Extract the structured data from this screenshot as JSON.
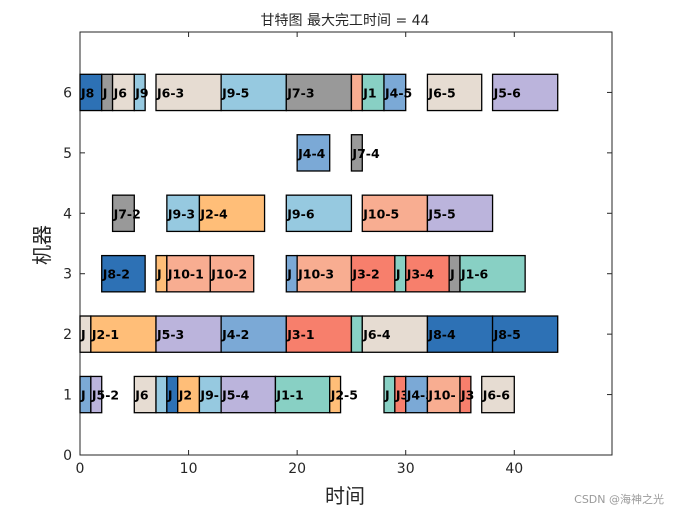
{
  "chart_data": {
    "type": "gantt",
    "title": "甘特图 最大完工时间 = 44",
    "xlabel": "时间",
    "ylabel": "机器",
    "xlim": [
      0,
      49
    ],
    "ylim": [
      0,
      7
    ],
    "xticks": [
      0,
      10,
      20,
      30,
      40
    ],
    "yticks": [
      0,
      1,
      2,
      3,
      4,
      5,
      6
    ],
    "grid": false,
    "job_colors": {
      "J1": "#88d0c4",
      "J2": "#ffbe78",
      "J3": "#f77f6c",
      "J4": "#7ba9d6",
      "J5": "#bbb4dc",
      "J6": "#e6dcd2",
      "J7": "#999999",
      "J8": "#2d71b5",
      "J9": "#96c9e0",
      "J10": "#f8ad91"
    },
    "tasks": [
      {
        "machine": 1,
        "start": 0,
        "end": 1,
        "job": "J4",
        "label": "J"
      },
      {
        "machine": 1,
        "start": 1,
        "end": 2,
        "job": "J5",
        "label": "J5-2"
      },
      {
        "machine": 1,
        "start": 5,
        "end": 7,
        "job": "J6",
        "label": "J6"
      },
      {
        "machine": 1,
        "start": 7,
        "end": 8,
        "job": "J9",
        "label": ""
      },
      {
        "machine": 1,
        "start": 8,
        "end": 9,
        "job": "J8",
        "label": "J"
      },
      {
        "machine": 1,
        "start": 9,
        "end": 11,
        "job": "J2",
        "label": "J2"
      },
      {
        "machine": 1,
        "start": 11,
        "end": 13,
        "job": "J9",
        "label": "J9-"
      },
      {
        "machine": 1,
        "start": 13,
        "end": 18,
        "job": "J5",
        "label": "J5-4"
      },
      {
        "machine": 1,
        "start": 18,
        "end": 23,
        "job": "J1",
        "label": "J1-1"
      },
      {
        "machine": 1,
        "start": 23,
        "end": 24,
        "job": "J2",
        "label": "J2-5"
      },
      {
        "machine": 1,
        "start": 28,
        "end": 29,
        "job": "J1",
        "label": "J"
      },
      {
        "machine": 1,
        "start": 29,
        "end": 30,
        "job": "J3",
        "label": "J3"
      },
      {
        "machine": 1,
        "start": 30,
        "end": 32,
        "job": "J4",
        "label": "J4-3"
      },
      {
        "machine": 1,
        "start": 32,
        "end": 35,
        "job": "J10",
        "label": "J10-"
      },
      {
        "machine": 1,
        "start": 35,
        "end": 36,
        "job": "J3",
        "label": "J3"
      },
      {
        "machine": 1,
        "start": 37,
        "end": 40,
        "job": "J6",
        "label": "J6-6"
      },
      {
        "machine": 2,
        "start": 0,
        "end": 1,
        "job": "J6",
        "label": "J"
      },
      {
        "machine": 2,
        "start": 1,
        "end": 7,
        "job": "J2",
        "label": "J2-1"
      },
      {
        "machine": 2,
        "start": 7,
        "end": 13,
        "job": "J5",
        "label": "J5-3"
      },
      {
        "machine": 2,
        "start": 13,
        "end": 19,
        "job": "J4",
        "label": "J4-2"
      },
      {
        "machine": 2,
        "start": 19,
        "end": 25,
        "job": "J3",
        "label": "J3-1"
      },
      {
        "machine": 2,
        "start": 25,
        "end": 26,
        "job": "J1",
        "label": ""
      },
      {
        "machine": 2,
        "start": 26,
        "end": 32,
        "job": "J6",
        "label": "J6-4"
      },
      {
        "machine": 2,
        "start": 32,
        "end": 38,
        "job": "J8",
        "label": "J8-4"
      },
      {
        "machine": 2,
        "start": 38,
        "end": 44,
        "job": "J8",
        "label": "J8-5"
      },
      {
        "machine": 3,
        "start": 2,
        "end": 6,
        "job": "J8",
        "label": "J8-2"
      },
      {
        "machine": 3,
        "start": 7,
        "end": 8,
        "job": "J2",
        "label": "J"
      },
      {
        "machine": 3,
        "start": 8,
        "end": 12,
        "job": "J10",
        "label": "J10-1"
      },
      {
        "machine": 3,
        "start": 12,
        "end": 16,
        "job": "J10",
        "label": "J10-2"
      },
      {
        "machine": 3,
        "start": 19,
        "end": 20,
        "job": "J4",
        "label": "J"
      },
      {
        "machine": 3,
        "start": 20,
        "end": 25,
        "job": "J10",
        "label": "J10-3"
      },
      {
        "machine": 3,
        "start": 25,
        "end": 29,
        "job": "J3",
        "label": "J3-2"
      },
      {
        "machine": 3,
        "start": 29,
        "end": 30,
        "job": "J1",
        "label": "J"
      },
      {
        "machine": 3,
        "start": 30,
        "end": 34,
        "job": "J3",
        "label": "J3-4"
      },
      {
        "machine": 3,
        "start": 34,
        "end": 35,
        "job": "J7",
        "label": "J"
      },
      {
        "machine": 3,
        "start": 35,
        "end": 41,
        "job": "J1",
        "label": "J1-6"
      },
      {
        "machine": 4,
        "start": 3,
        "end": 5,
        "job": "J7",
        "label": "J7-2"
      },
      {
        "machine": 4,
        "start": 8,
        "end": 11,
        "job": "J9",
        "label": "J9-3"
      },
      {
        "machine": 4,
        "start": 11,
        "end": 17,
        "job": "J2",
        "label": "J2-4"
      },
      {
        "machine": 4,
        "start": 19,
        "end": 25,
        "job": "J9",
        "label": "J9-6"
      },
      {
        "machine": 4,
        "start": 26,
        "end": 32,
        "job": "J10",
        "label": "J10-5"
      },
      {
        "machine": 4,
        "start": 32,
        "end": 38,
        "job": "J5",
        "label": "J5-5"
      },
      {
        "machine": 5,
        "start": 20,
        "end": 23,
        "job": "J4",
        "label": "J4-4"
      },
      {
        "machine": 5,
        "start": 25,
        "end": 26,
        "job": "J7",
        "label": "J7-4"
      },
      {
        "machine": 6,
        "start": 0,
        "end": 2,
        "job": "J8",
        "label": "J8"
      },
      {
        "machine": 6,
        "start": 2,
        "end": 3,
        "job": "J7",
        "label": "J"
      },
      {
        "machine": 6,
        "start": 3,
        "end": 5,
        "job": "J6",
        "label": "J6"
      },
      {
        "machine": 6,
        "start": 5,
        "end": 6,
        "job": "J9",
        "label": "J9"
      },
      {
        "machine": 6,
        "start": 7,
        "end": 13,
        "job": "J6",
        "label": "J6-3"
      },
      {
        "machine": 6,
        "start": 13,
        "end": 19,
        "job": "J9",
        "label": "J9-5"
      },
      {
        "machine": 6,
        "start": 19,
        "end": 25,
        "job": "J7",
        "label": "J7-3"
      },
      {
        "machine": 6,
        "start": 25,
        "end": 26,
        "job": "J10",
        "label": ""
      },
      {
        "machine": 6,
        "start": 26,
        "end": 28,
        "job": "J1",
        "label": "J1"
      },
      {
        "machine": 6,
        "start": 28,
        "end": 30,
        "job": "J4",
        "label": "J4-5"
      },
      {
        "machine": 6,
        "start": 32,
        "end": 37,
        "job": "J6",
        "label": "J6-5"
      },
      {
        "machine": 6,
        "start": 38,
        "end": 44,
        "job": "J5",
        "label": "J5-6"
      }
    ]
  },
  "watermark": "CSDN @海神之光"
}
